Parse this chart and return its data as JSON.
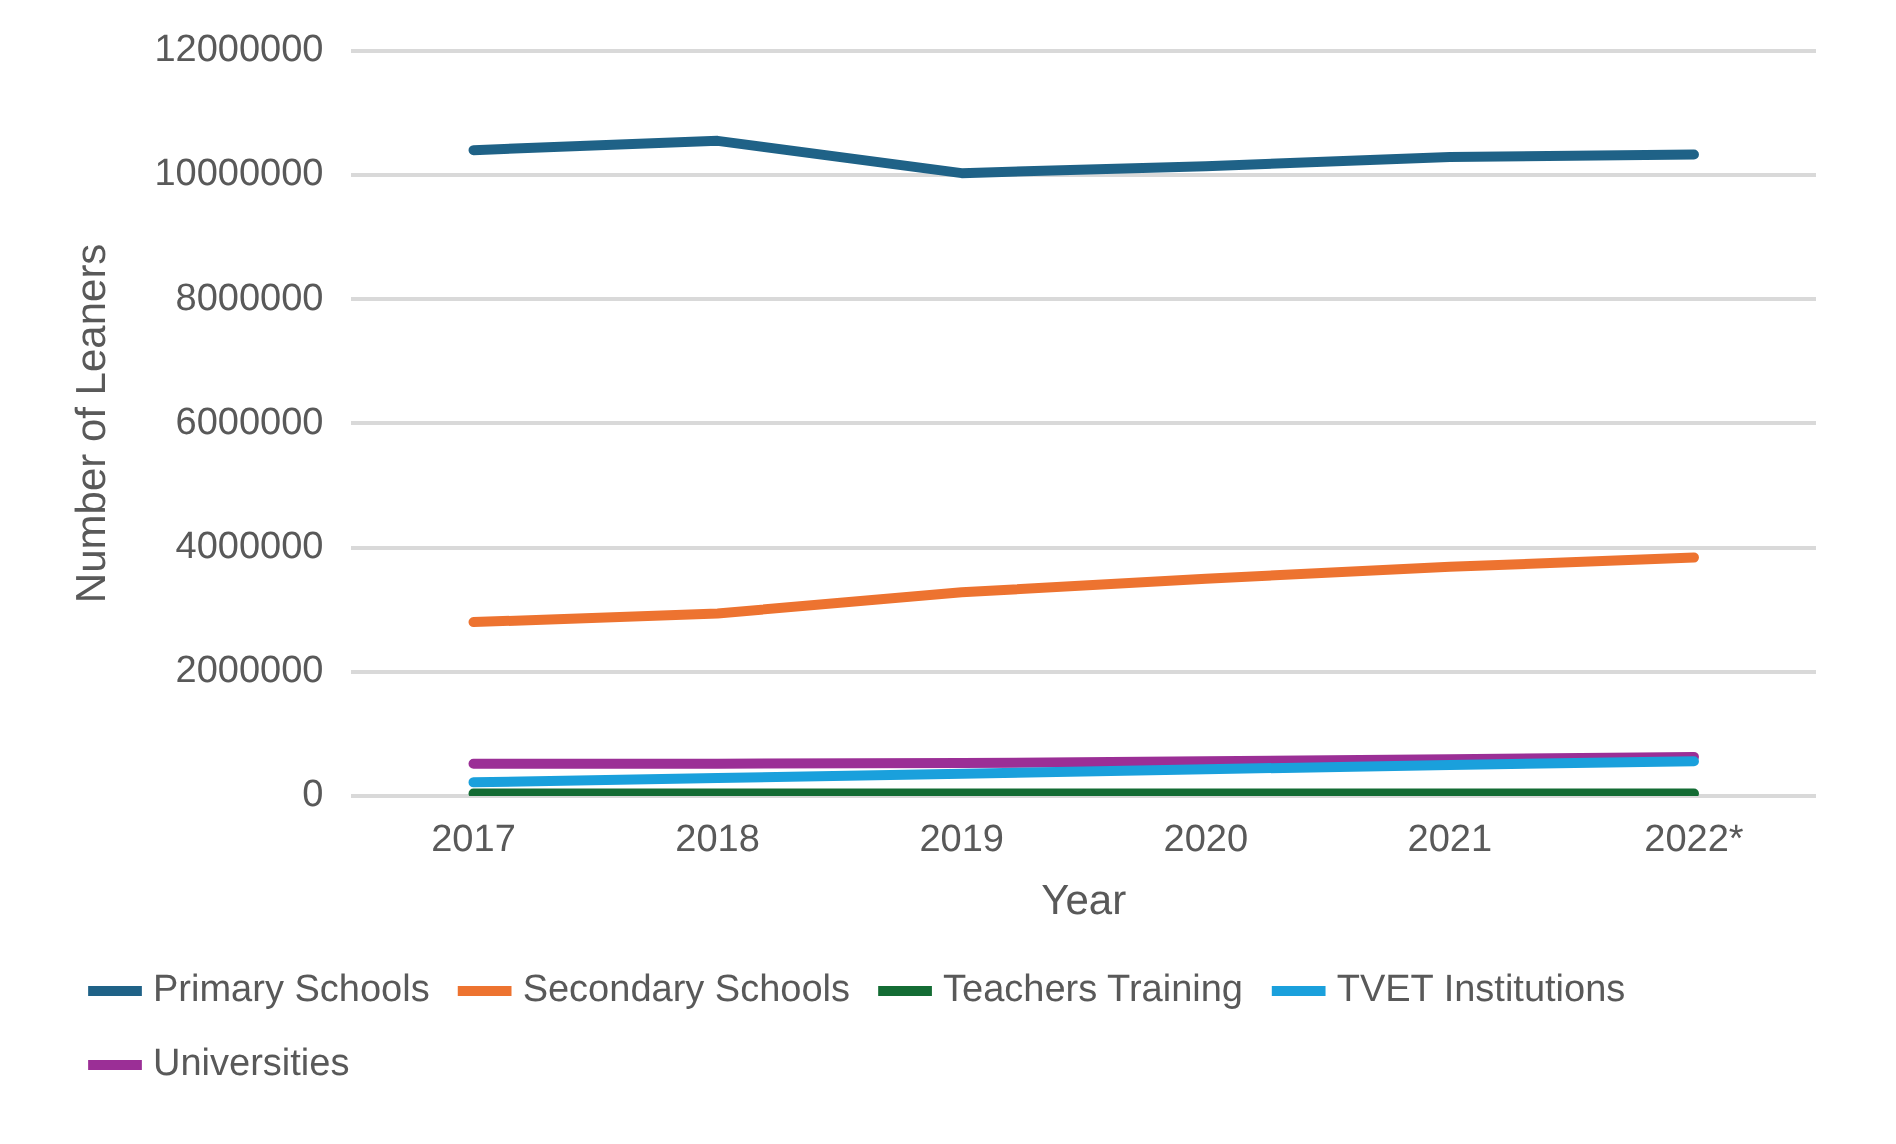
{
  "chart_data": {
    "type": "line",
    "xlabel": "Year",
    "ylabel": "Number of Leaners",
    "categories": [
      "2017",
      "2018",
      "2019",
      "2020",
      "2021",
      "2022*"
    ],
    "series": [
      {
        "name": "Primary Schools",
        "color": "#1f6287",
        "values": [
          10400000,
          10550000,
          10030000,
          10140000,
          10290000,
          10330000
        ]
      },
      {
        "name": "Secondary Schools",
        "color": "#ed7330",
        "values": [
          2800000,
          2940000,
          3280000,
          3500000,
          3690000,
          3840000
        ]
      },
      {
        "name": "Teachers Training",
        "color": "#146c34",
        "values": [
          40000,
          40000,
          40000,
          40000,
          40000,
          40000
        ]
      },
      {
        "name": "TVET Institutions",
        "color": "#1aa0dc",
        "values": [
          220000,
          290000,
          360000,
          430000,
          500000,
          560000
        ]
      },
      {
        "name": "Universities",
        "color": "#9b2f96",
        "values": [
          520000,
          520000,
          530000,
          560000,
          590000,
          630000
        ]
      }
    ],
    "ylim": [
      0,
      12000000
    ],
    "yticks": [
      0,
      2000000,
      4000000,
      6000000,
      8000000,
      10000000,
      12000000
    ],
    "grid": "y",
    "legend": "bottom",
    "marker": "none",
    "line_style": "solid"
  }
}
